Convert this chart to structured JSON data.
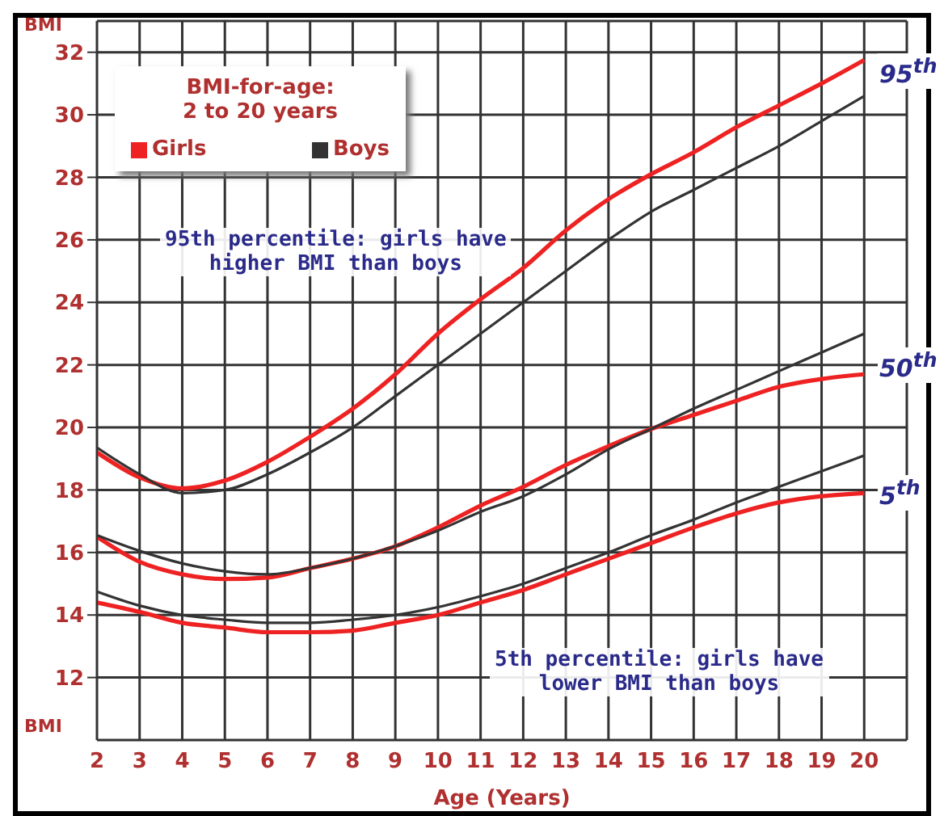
{
  "chart_data": {
    "type": "line",
    "xlabel": "Age (Years)",
    "ylabel": "BMI",
    "legend_title": "BMI-for-age:\n2 to 20 years",
    "legend": "top left",
    "grid": true,
    "marker": "none",
    "line_style": "solid",
    "x": [
      2,
      3,
      4,
      5,
      6,
      7,
      8,
      9,
      10,
      11,
      12,
      13,
      14,
      15,
      16,
      17,
      18,
      19,
      20
    ],
    "xlim": [
      2,
      21
    ],
    "xticks": [
      2,
      3,
      4,
      5,
      6,
      7,
      8,
      9,
      10,
      11,
      12,
      13,
      14,
      15,
      16,
      17,
      18,
      19,
      20
    ],
    "ylim": [
      10,
      33
    ],
    "yticks": [
      12,
      14,
      16,
      18,
      20,
      22,
      24,
      26,
      28,
      30,
      32
    ],
    "series": [
      {
        "name": "Girls",
        "color": "#ee2222",
        "values": [
          19.2,
          18.4,
          18.05,
          18.3,
          18.9,
          19.7,
          20.6,
          21.7,
          23.0,
          24.1,
          25.1,
          26.3,
          27.3,
          28.1,
          28.8,
          29.6,
          30.3,
          31.0,
          31.75
        ]
      },
      {
        "name": "Boys",
        "color": "#333333",
        "values": [
          19.35,
          18.5,
          17.9,
          18.0,
          18.5,
          19.2,
          20.0,
          21.0,
          22.0,
          23.0,
          24.0,
          25.0,
          26.0,
          26.9,
          27.6,
          28.3,
          29.0,
          29.8,
          30.6
        ]
      },
      {
        "color": "#ee2222",
        "values": [
          16.5,
          15.7,
          15.3,
          15.15,
          15.2,
          15.5,
          15.8,
          16.2,
          16.8,
          17.5,
          18.1,
          18.8,
          19.4,
          19.95,
          20.4,
          20.85,
          21.3,
          21.55,
          21.7
        ]
      },
      {
        "color": "#333333",
        "values": [
          16.55,
          16.05,
          15.65,
          15.4,
          15.3,
          15.5,
          15.8,
          16.2,
          16.7,
          17.3,
          17.8,
          18.5,
          19.3,
          19.95,
          20.6,
          21.2,
          21.8,
          22.4,
          23.0
        ]
      },
      {
        "color": "#ee2222",
        "values": [
          14.4,
          14.1,
          13.75,
          13.6,
          13.45,
          13.45,
          13.5,
          13.75,
          14.0,
          14.4,
          14.8,
          15.3,
          15.8,
          16.3,
          16.8,
          17.25,
          17.6,
          17.8,
          17.9
        ]
      },
      {
        "color": "#333333",
        "values": [
          14.75,
          14.3,
          14.0,
          13.85,
          13.75,
          13.75,
          13.85,
          14.0,
          14.25,
          14.6,
          15.0,
          15.5,
          16.0,
          16.55,
          17.05,
          17.6,
          18.1,
          18.6,
          19.1
        ]
      }
    ],
    "annotations": [
      "95th percentile: girls have\nhigher BMI than boys",
      "5th percentile: girls have\nlower BMI than boys",
      "95$^{th}$",
      "50$^{th}$",
      "5$^{th}$"
    ]
  }
}
